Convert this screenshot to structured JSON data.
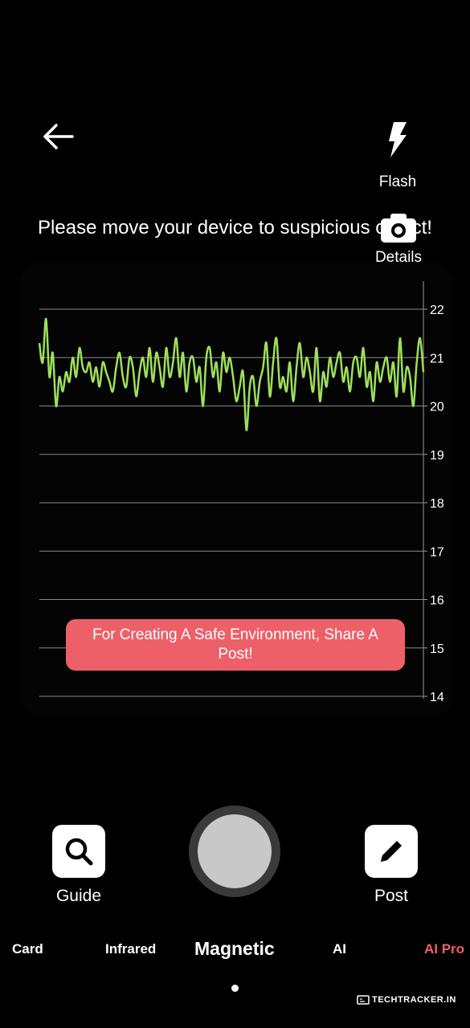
{
  "header": {
    "back_icon": "arrow-left-icon",
    "flash": {
      "label": "Flash",
      "icon": "flash-icon"
    },
    "details": {
      "label": "Details",
      "icon": "camera-icon"
    }
  },
  "instruction": "Please move your device to suspicious object!",
  "chart_data": {
    "type": "line",
    "yticks": [
      22,
      21,
      20,
      19,
      18,
      17,
      16,
      15,
      14
    ],
    "ylim": [
      14,
      22.2
    ],
    "grid": true,
    "series_color": "#9ee05a",
    "values": [
      21.3,
      20.9,
      21.8,
      20.6,
      21.1,
      20.0,
      20.6,
      20.3,
      20.7,
      20.5,
      21.0,
      20.6,
      21.2,
      20.8,
      20.7,
      20.9,
      20.5,
      20.8,
      20.4,
      20.9,
      20.7,
      20.5,
      20.3,
      20.8,
      21.1,
      20.6,
      20.4,
      21.0,
      20.8,
      20.2,
      20.7,
      21.0,
      20.6,
      21.2,
      20.5,
      21.1,
      20.8,
      20.4,
      21.2,
      20.6,
      20.9,
      21.4,
      20.6,
      21.1,
      20.3,
      20.9,
      21.0,
      20.5,
      20.8,
      20.0,
      21.0,
      21.2,
      20.6,
      20.9,
      20.3,
      21.1,
      20.7,
      21.0,
      20.6,
      20.1,
      20.4,
      20.7,
      19.5,
      20.4,
      20.6,
      20.0,
      20.5,
      20.8,
      21.3,
      20.2,
      20.9,
      21.4,
      20.4,
      20.6,
      20.3,
      20.9,
      20.1,
      20.8,
      21.3,
      20.6,
      21.0,
      20.7,
      20.3,
      21.2,
      20.1,
      20.7,
      20.4,
      21.0,
      20.6,
      20.9,
      21.1,
      20.5,
      20.8,
      20.3,
      20.9,
      21.0,
      20.6,
      21.2,
      20.4,
      20.7,
      20.1,
      20.9,
      20.5,
      20.8,
      21.0,
      20.5,
      20.9,
      20.2,
      21.4,
      20.3,
      20.8,
      20.6,
      20.0,
      20.9,
      21.4,
      20.7
    ]
  },
  "toast": "For Creating A Safe Environment, Share A Post!",
  "tools": {
    "guide": {
      "label": "Guide",
      "icon": "search-icon"
    },
    "post": {
      "label": "Post",
      "icon": "pencil-icon"
    }
  },
  "modes": {
    "card": "Card",
    "infrared": "Infrared",
    "magnetic": "Magnetic",
    "ai": "AI",
    "ai_pro": "AI Pro",
    "active": "Magnetic",
    "pro_color": "#ee6068"
  },
  "watermark": "TECHTRACKER.IN"
}
